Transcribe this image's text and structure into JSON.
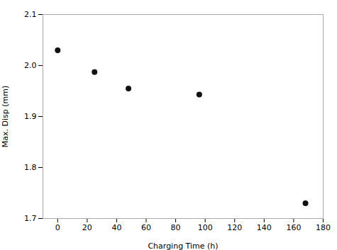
{
  "chart_data": {
    "type": "scatter",
    "x": [
      0,
      25,
      48,
      96,
      168
    ],
    "values": [
      2.03,
      1.987,
      1.955,
      1.943,
      1.73
    ],
    "xlabel": "Charging Time (h)",
    "ylabel": "Max. Disp (mm)",
    "xlim": [
      -10,
      180
    ],
    "ylim": [
      1.7,
      2.1
    ],
    "xticks": [
      0,
      20,
      40,
      60,
      80,
      100,
      120,
      140,
      160,
      180
    ],
    "yticks": [
      1.7,
      1.8,
      1.9,
      {
        "value": 2,
        "label": "2.0"
      },
      2.1
    ],
    "color": "#111111",
    "grid": false
  }
}
